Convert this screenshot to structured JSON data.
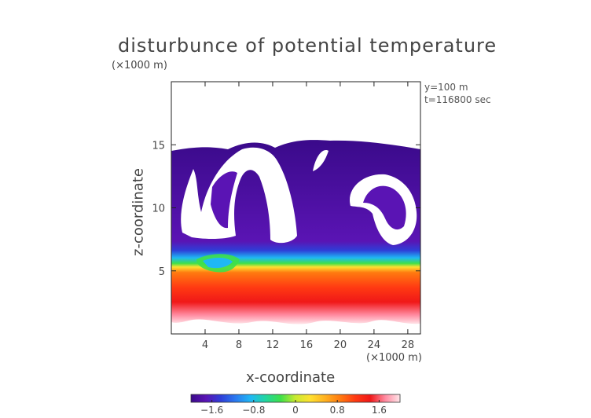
{
  "chart_data": {
    "type": "heatmap",
    "title": "disturbunce of potential temperature",
    "xlabel": "x-coordinate",
    "ylabel": "z-coordinate",
    "x_unit": "(×1000 m)",
    "y_unit": "(×1000 m)",
    "annotations": [
      "y=100 m",
      "t=116800 sec"
    ],
    "xlim": [
      0,
      29.5
    ],
    "ylim": [
      0,
      20
    ],
    "xticks": [
      4,
      8,
      12,
      16,
      20,
      24,
      28
    ],
    "yticks": [
      5,
      10,
      15
    ],
    "colorbar": {
      "range": [
        -2.0,
        2.0
      ],
      "ticks": [
        "−1.6",
        "−0.8",
        "0",
        "0.8",
        "1.6"
      ],
      "tick_values": [
        -1.6,
        -0.8,
        0,
        0.8,
        1.6
      ],
      "colors": [
        "#3a0a8a",
        "#5a14b4",
        "#2e3fd8",
        "#2a7af0",
        "#1fb8f4",
        "#22d6a0",
        "#3ee04a",
        "#c8ea30",
        "#ffe030",
        "#ffb020",
        "#ff7a10",
        "#ff3a12",
        "#f01818",
        "#ff8aa0",
        "#ffe6ea"
      ]
    },
    "field_summary": [
      {
        "z_range": [
          0.5,
          6
        ],
        "value": 1.4,
        "note": "warm layer (orange–red)"
      },
      {
        "z_range": [
          6,
          7.5
        ],
        "value": -0.8,
        "note": "transition (cyan–blue)"
      },
      {
        "z_range": [
          7.5,
          15.5
        ],
        "value": -1.8,
        "note": "cold region (purple)"
      }
    ],
    "grid": false,
    "legend_position": "bottom"
  }
}
